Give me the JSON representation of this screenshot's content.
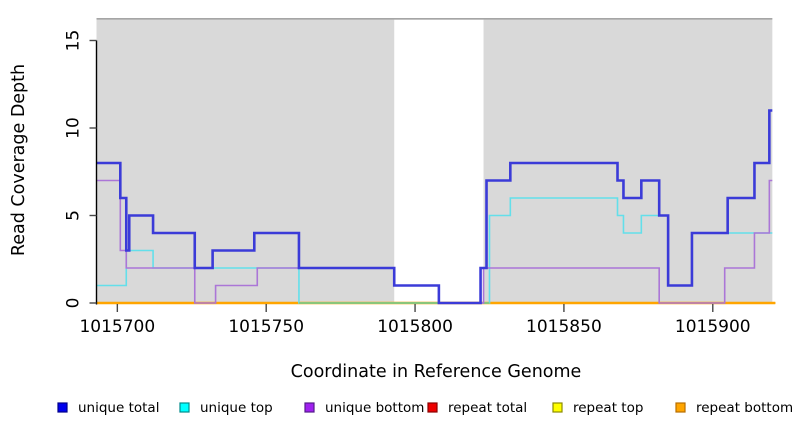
{
  "chart_data": {
    "type": "line",
    "subtype": "step-coverage",
    "title": "",
    "xlabel": "Coordinate in Reference Genome",
    "ylabel": "Read Coverage Depth",
    "x_ticks": [
      1015700,
      1015750,
      1015800,
      1015850,
      1015900
    ],
    "y_ticks": [
      0,
      5,
      10,
      15
    ],
    "xlim": [
      1015693,
      1015921
    ],
    "ylim": [
      0,
      16.3
    ],
    "grid": false,
    "background_color": "#ffffff",
    "masked_band": {
      "from": 1015693,
      "to": 1015920,
      "gap_from": 1015793,
      "gap_to": 1015823,
      "fill": "#D9D9D9",
      "border": "#A5A5A5"
    },
    "baseline_overlap": {
      "from": 1015761,
      "to": 1015825,
      "color": "#7CC87C",
      "note": "unique-top at depth 0 blended over repeat-bottom baseline"
    },
    "axis_color": "#000000",
    "tick_color": "#474747",
    "series": [
      {
        "name": "repeat total",
        "color": "#CC0000",
        "width": 1.6,
        "end": 1015921,
        "points": [
          [
            1015693,
            0
          ]
        ]
      },
      {
        "name": "repeat top",
        "color": "#EEEE00",
        "width": 1.6,
        "end": 1015921,
        "points": [
          [
            1015693,
            0
          ]
        ]
      },
      {
        "name": "repeat bottom",
        "color": "#FFA500",
        "width": 2.6,
        "end": 1015921,
        "points": [
          [
            1015693,
            0
          ]
        ]
      },
      {
        "name": "unique top",
        "color": "#63DFEA",
        "width": 1.6,
        "end": 1015920,
        "points": [
          [
            1015693,
            1
          ],
          [
            1015703,
            3
          ],
          [
            1015712,
            2
          ],
          [
            1015761,
            0
          ],
          [
            1015825,
            5
          ],
          [
            1015832,
            6
          ],
          [
            1015868,
            5
          ],
          [
            1015870,
            4
          ],
          [
            1015876,
            5
          ],
          [
            1015885,
            1
          ],
          [
            1015893,
            4
          ]
        ]
      },
      {
        "name": "unique bottom",
        "color": "#AB76D7",
        "width": 1.6,
        "end": 1015920,
        "points": [
          [
            1015693,
            7
          ],
          [
            1015701,
            3
          ],
          [
            1015703,
            2
          ],
          [
            1015726,
            0
          ],
          [
            1015733,
            1
          ],
          [
            1015747,
            2
          ],
          [
            1015793,
            1
          ],
          [
            1015808,
            0
          ],
          [
            1015823,
            2
          ],
          [
            1015882,
            0
          ],
          [
            1015904,
            2
          ],
          [
            1015914,
            4
          ],
          [
            1015919,
            7
          ]
        ]
      },
      {
        "name": "unique total",
        "color": "#3B3BD8",
        "width": 2.6,
        "end": 1015920,
        "points": [
          [
            1015693,
            8
          ],
          [
            1015701,
            6
          ],
          [
            1015703,
            3
          ],
          [
            1015704,
            5
          ],
          [
            1015712,
            4
          ],
          [
            1015726,
            2
          ],
          [
            1015732,
            3
          ],
          [
            1015746,
            4
          ],
          [
            1015761,
            2
          ],
          [
            1015793,
            1
          ],
          [
            1015808,
            0
          ],
          [
            1015822,
            2
          ],
          [
            1015824,
            7
          ],
          [
            1015832,
            8
          ],
          [
            1015868,
            7
          ],
          [
            1015870,
            6
          ],
          [
            1015876,
            7
          ],
          [
            1015882,
            5
          ],
          [
            1015885,
            1
          ],
          [
            1015893,
            4
          ],
          [
            1015905,
            6
          ],
          [
            1015914,
            8
          ],
          [
            1015919,
            11
          ]
        ]
      }
    ],
    "legend": {
      "position": "bottom",
      "entries": [
        {
          "label": "unique total",
          "fill": "#0000EE",
          "border": "#00008B"
        },
        {
          "label": "unique top",
          "fill": "#00FFFF",
          "border": "#008B8B"
        },
        {
          "label": "unique bottom",
          "fill": "#A020F0",
          "border": "#551A8B"
        },
        {
          "label": "repeat total",
          "fill": "#EE0000",
          "border": "#8B0000"
        },
        {
          "label": "repeat top",
          "fill": "#FFFF00",
          "border": "#8B8B00"
        },
        {
          "label": "repeat bottom",
          "fill": "#FFA500",
          "border": "#B86E00"
        }
      ]
    }
  }
}
